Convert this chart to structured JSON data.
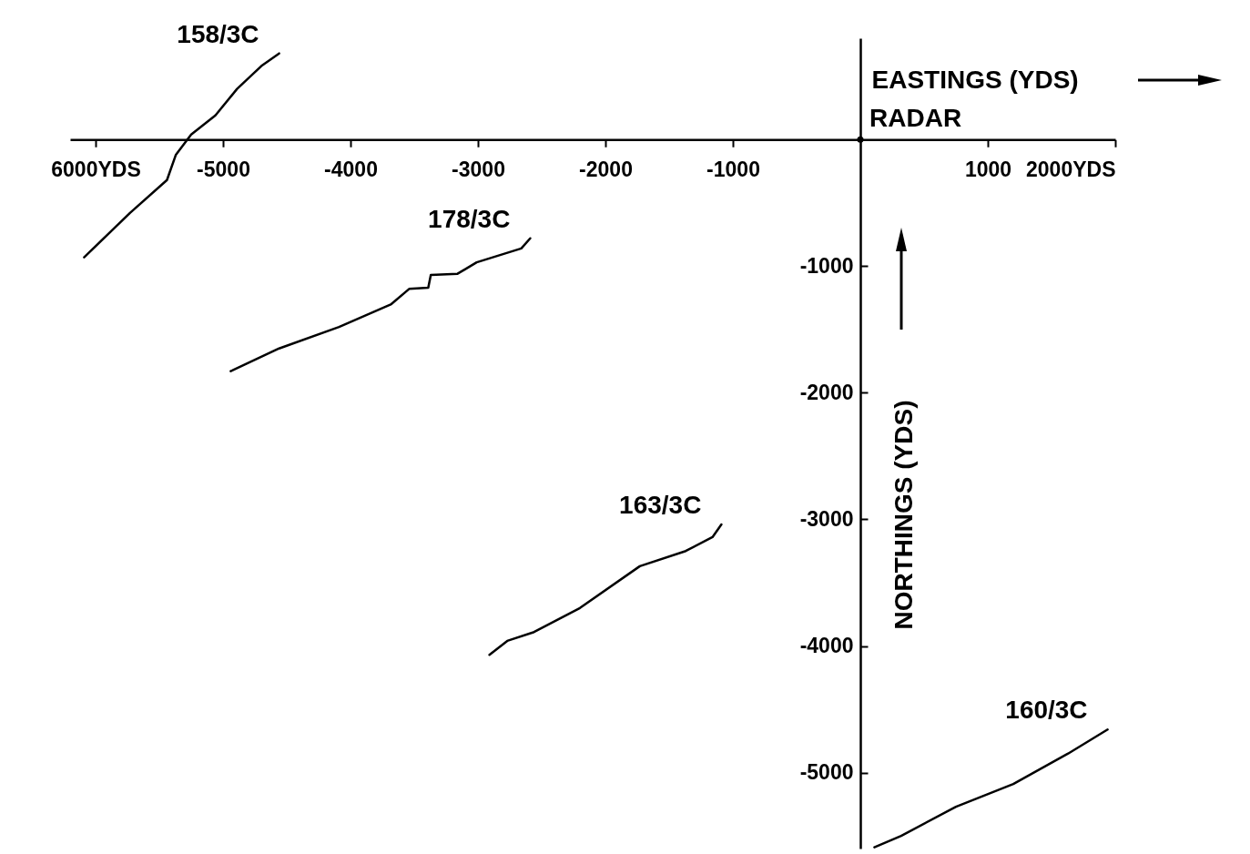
{
  "chart_data": {
    "type": "line",
    "xlabel": "EASTINGS (YDS)",
    "ylabel": "NORTHINGS (YDS)",
    "xlim": [
      -6200,
      2000
    ],
    "ylim": [
      -5600,
      800
    ],
    "xticks": [
      {
        "value": -6000,
        "label": "6000YDS"
      },
      -5000,
      -4000,
      -3000,
      -2000,
      -1000,
      1000,
      {
        "value": 2000,
        "label": "2000YDS"
      }
    ],
    "yticks": [
      -1000,
      -2000,
      -3000,
      -4000,
      -5000
    ],
    "grid": false,
    "annotations": [
      {
        "text": "RADAR",
        "x": 0,
        "y": 0
      }
    ],
    "series": [
      {
        "name": "158/3C",
        "color": "#000000",
        "x": [
          -6090,
          -5730,
          -5440,
          -5370,
          -5250,
          -5060,
          -4890,
          -4700,
          -4560
        ],
        "values": [
          -930,
          -580,
          -320,
          -120,
          40,
          190,
          400,
          580,
          680
        ]
      },
      {
        "name": "178/3C",
        "color": "#000000",
        "x": [
          -4940,
          -4560,
          -4090,
          -3680,
          -3540,
          -3390,
          -3370,
          -3160,
          -3010,
          -2660,
          -2590
        ],
        "values": [
          -1830,
          -1650,
          -1480,
          -1300,
          -1180,
          -1170,
          -1070,
          -1060,
          -970,
          -860,
          -780
        ]
      },
      {
        "name": "163/3C",
        "color": "#000000",
        "x": [
          -2910,
          -2770,
          -2560,
          -2200,
          -1730,
          -1370,
          -1160,
          -1090
        ],
        "values": [
          -4070,
          -3960,
          -3890,
          -3700,
          -3370,
          -3250,
          -3140,
          -3040
        ]
      },
      {
        "name": "160/3C",
        "color": "#000000",
        "x": [
          110,
          320,
          750,
          1200,
          1630,
          1940
        ],
        "values": [
          -5590,
          -5500,
          -5270,
          -5090,
          -4850,
          -4660
        ]
      }
    ]
  }
}
